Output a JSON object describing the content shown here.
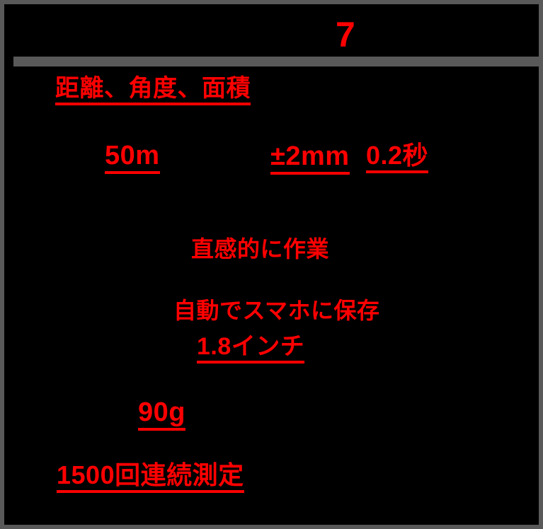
{
  "slide": {
    "page_number": "7",
    "colors": {
      "background": "#000000",
      "border": "#595959",
      "divider_bar": "#595959",
      "highlight_text": "#FF0000"
    },
    "specs": {
      "measure_types": "距離、角度、面積",
      "max_range": "50m",
      "accuracy": "±2mm",
      "measure_speed": "0.2秒",
      "intuitive_work": "直感的に作業",
      "auto_save": "自動でスマホに保存",
      "display_size": "1.8インチ",
      "weight": "90g",
      "battery_capacity": "1500回連続測定"
    }
  }
}
